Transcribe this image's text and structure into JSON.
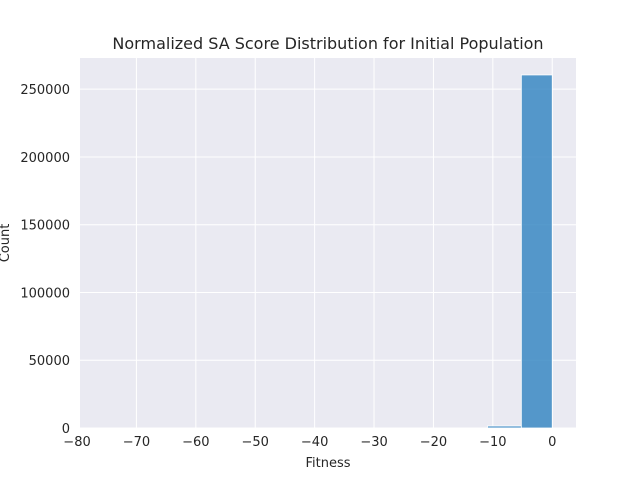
{
  "chart_data": {
    "type": "bar",
    "title": "Normalized SA Score Distribution for Initial Population",
    "xlabel": "Fitness",
    "ylabel": "Count",
    "xlim": [
      -79.5,
      4.0
    ],
    "ylim": [
      0,
      273000
    ],
    "xticks": [
      -80,
      -70,
      -60,
      -50,
      -40,
      -30,
      -20,
      -10,
      0
    ],
    "yticks": [
      0,
      50000,
      100000,
      150000,
      200000,
      250000
    ],
    "grid": true,
    "bar_color": "#3a88c3",
    "background_color": "#eaeaf2",
    "bins": [
      {
        "x0": -78.5,
        "x1": -73.3,
        "count": 0
      },
      {
        "x0": -73.3,
        "x1": -68.1,
        "count": 0
      },
      {
        "x0": -68.1,
        "x1": -62.9,
        "count": 0
      },
      {
        "x0": -62.9,
        "x1": -57.7,
        "count": 0
      },
      {
        "x0": -57.7,
        "x1": -52.5,
        "count": 0
      },
      {
        "x0": -52.5,
        "x1": -47.3,
        "count": 0
      },
      {
        "x0": -47.3,
        "x1": -42.1,
        "count": 0
      },
      {
        "x0": -42.1,
        "x1": -36.9,
        "count": 0
      },
      {
        "x0": -36.9,
        "x1": -31.7,
        "count": 0
      },
      {
        "x0": -31.7,
        "x1": -26.5,
        "count": 0
      },
      {
        "x0": -26.5,
        "x1": -21.3,
        "count": 0
      },
      {
        "x0": -21.3,
        "x1": -16.1,
        "count": 0
      },
      {
        "x0": -16.1,
        "x1": -10.9,
        "count": 0
      },
      {
        "x0": -10.9,
        "x1": -5.2,
        "count": 1500
      },
      {
        "x0": -5.2,
        "x1": 0.0,
        "count": 260500
      }
    ]
  }
}
